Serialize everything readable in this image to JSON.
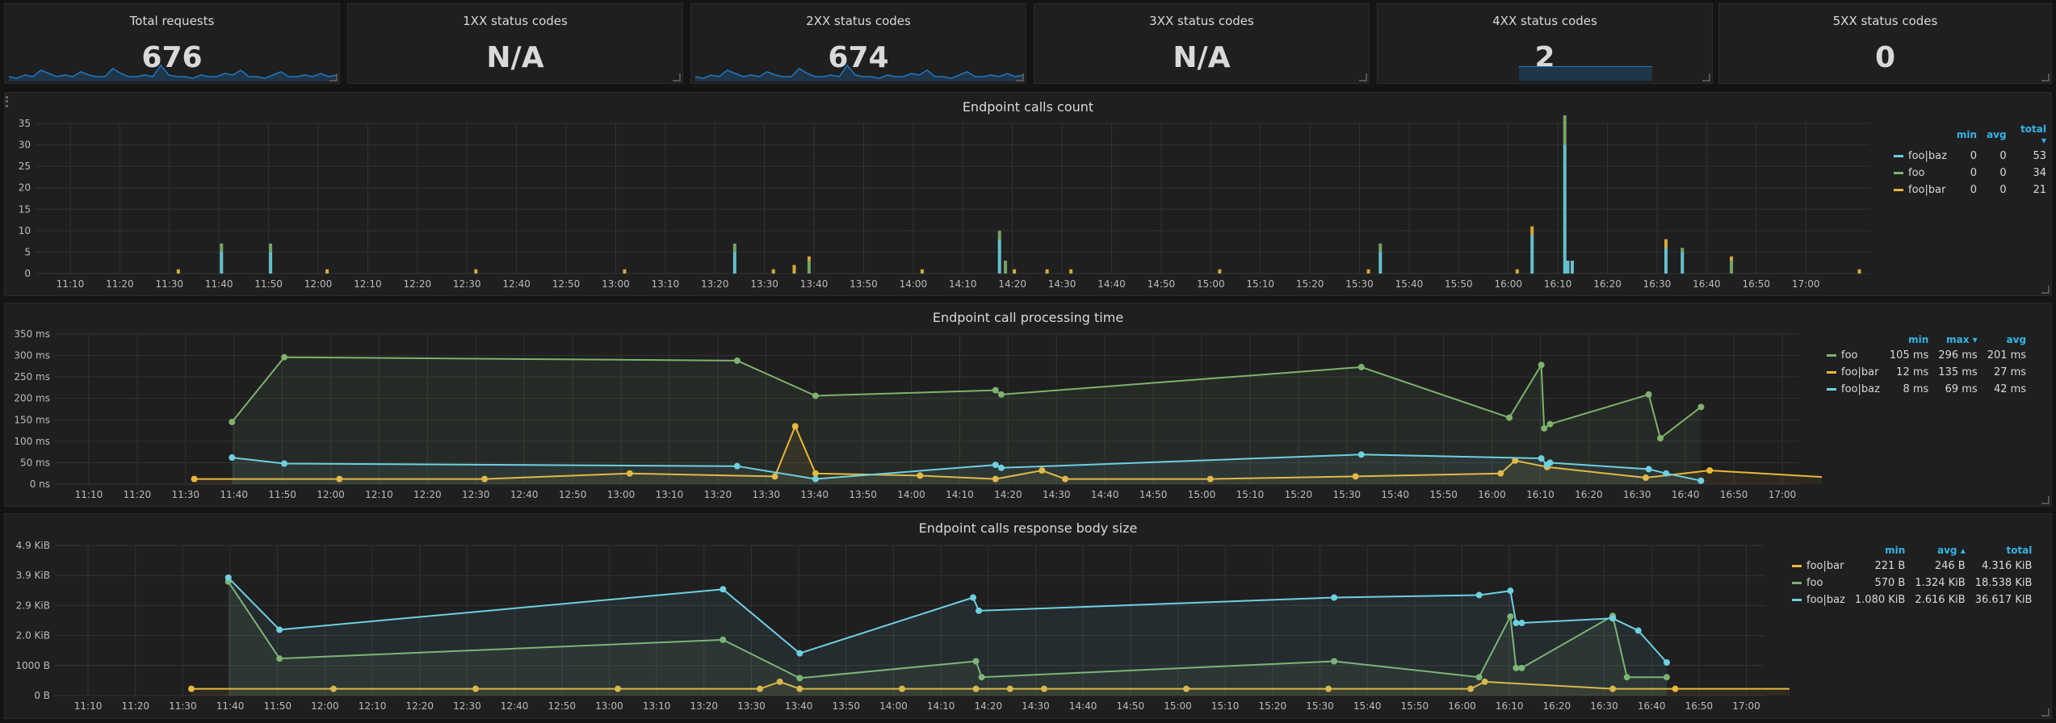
{
  "stats": [
    {
      "title": "Total requests",
      "value": "676",
      "spark": [
        2,
        1,
        3,
        2,
        6,
        4,
        2,
        3,
        2,
        5,
        3,
        2,
        2,
        7,
        4,
        2,
        2,
        3,
        2,
        9,
        3,
        2,
        2,
        1,
        3,
        2,
        2,
        4,
        3,
        6,
        2,
        2,
        1,
        3,
        5,
        2,
        2,
        3,
        2,
        4,
        2,
        3
      ]
    },
    {
      "title": "1XX status codes",
      "value": "N/A"
    },
    {
      "title": "2XX status codes",
      "value": "674",
      "spark": [
        2,
        1,
        3,
        2,
        6,
        4,
        2,
        3,
        2,
        5,
        3,
        2,
        2,
        7,
        4,
        2,
        2,
        3,
        2,
        9,
        3,
        2,
        2,
        1,
        3,
        2,
        2,
        4,
        3,
        6,
        2,
        2,
        1,
        3,
        5,
        2,
        2,
        3,
        2,
        4,
        2,
        3
      ]
    },
    {
      "title": "3XX status codes",
      "value": "N/A"
    },
    {
      "title": "4XX status codes",
      "value": "2",
      "bar": true
    },
    {
      "title": "5XX status codes",
      "value": "0"
    }
  ],
  "graph1": {
    "title": "Endpoint calls count",
    "yticks": [
      "0",
      "5",
      "10",
      "15",
      "20",
      "25",
      "30",
      "35"
    ],
    "xticks": [
      "11:10",
      "11:20",
      "11:30",
      "11:40",
      "11:50",
      "12:00",
      "12:10",
      "12:20",
      "12:30",
      "12:40",
      "12:50",
      "13:00",
      "13:10",
      "13:20",
      "13:30",
      "13:40",
      "13:50",
      "14:00",
      "14:10",
      "14:20",
      "14:30",
      "14:40",
      "14:50",
      "15:00",
      "15:10",
      "15:20",
      "15:30",
      "15:40",
      "15:50",
      "16:00",
      "16:10",
      "16:20",
      "16:30",
      "16:40",
      "16:50",
      "17:00"
    ],
    "legend_headers": [
      "min",
      "avg",
      "total ▾"
    ],
    "series": [
      {
        "name": "foo|baz",
        "color": "#6ed0e0",
        "min": "0",
        "avg": "0",
        "total": "53"
      },
      {
        "name": "foo",
        "color": "#7eb26d",
        "min": "0",
        "avg": "0",
        "total": "34"
      },
      {
        "name": "foo|bar",
        "color": "#eab839",
        "min": "0",
        "avg": "0",
        "total": "21"
      }
    ],
    "bars": [
      {
        "t": 11.53,
        "v": 1,
        "c": 2
      },
      {
        "t": 11.675,
        "v": 5,
        "c": 0
      },
      {
        "t": 11.675,
        "v": 2,
        "c": 1
      },
      {
        "t": 11.84,
        "v": 5,
        "c": 0
      },
      {
        "t": 11.84,
        "v": 2,
        "c": 1
      },
      {
        "t": 12.03,
        "v": 1,
        "c": 2
      },
      {
        "t": 12.53,
        "v": 1,
        "c": 2
      },
      {
        "t": 13.03,
        "v": 1,
        "c": 2
      },
      {
        "t": 13.4,
        "v": 5,
        "c": 0
      },
      {
        "t": 13.4,
        "v": 2,
        "c": 1
      },
      {
        "t": 13.53,
        "v": 1,
        "c": 2
      },
      {
        "t": 13.6,
        "v": 2,
        "c": 2
      },
      {
        "t": 13.65,
        "v": 3,
        "c": 1
      },
      {
        "t": 13.65,
        "v": 1,
        "c": 2
      },
      {
        "t": 14.03,
        "v": 1,
        "c": 2
      },
      {
        "t": 14.29,
        "v": 8,
        "c": 0
      },
      {
        "t": 14.29,
        "v": 2,
        "c": 1
      },
      {
        "t": 14.31,
        "v": 3,
        "c": 1
      },
      {
        "t": 14.34,
        "v": 1,
        "c": 2
      },
      {
        "t": 14.45,
        "v": 1,
        "c": 2
      },
      {
        "t": 14.53,
        "v": 1,
        "c": 2
      },
      {
        "t": 15.03,
        "v": 1,
        "c": 2
      },
      {
        "t": 15.53,
        "v": 1,
        "c": 2
      },
      {
        "t": 15.57,
        "v": 5,
        "c": 0
      },
      {
        "t": 15.57,
        "v": 2,
        "c": 1
      },
      {
        "t": 16.03,
        "v": 1,
        "c": 2
      },
      {
        "t": 16.08,
        "v": 9,
        "c": 0
      },
      {
        "t": 16.08,
        "v": 2,
        "c": 2
      },
      {
        "t": 16.19,
        "v": 30,
        "c": 0
      },
      {
        "t": 16.19,
        "v": 12,
        "c": 1
      },
      {
        "t": 16.2,
        "v": 3,
        "c": 0
      },
      {
        "t": 16.215,
        "v": 3,
        "c": 0
      },
      {
        "t": 16.53,
        "v": 6,
        "c": 0
      },
      {
        "t": 16.53,
        "v": 2,
        "c": 2
      },
      {
        "t": 16.585,
        "v": 5,
        "c": 0
      },
      {
        "t": 16.585,
        "v": 1,
        "c": 1
      },
      {
        "t": 16.75,
        "v": 3,
        "c": 1
      },
      {
        "t": 16.75,
        "v": 1,
        "c": 2
      },
      {
        "t": 17.18,
        "v": 1,
        "c": 2
      }
    ]
  },
  "graph2": {
    "title": "Endpoint call processing time",
    "yticks": [
      "0 ns",
      "50 ms",
      "100 ms",
      "150 ms",
      "200 ms",
      "250 ms",
      "300 ms",
      "350 ms"
    ],
    "xticks": [
      "11:10",
      "11:20",
      "11:30",
      "11:40",
      "11:50",
      "12:00",
      "12:10",
      "12:20",
      "12:30",
      "12:40",
      "12:50",
      "13:00",
      "13:10",
      "13:20",
      "13:30",
      "13:40",
      "13:50",
      "14:00",
      "14:10",
      "14:20",
      "14:30",
      "14:40",
      "14:50",
      "15:00",
      "15:10",
      "15:20",
      "15:30",
      "15:40",
      "15:50",
      "16:00",
      "16:10",
      "16:20",
      "16:30",
      "16:40",
      "16:50",
      "17:00"
    ],
    "legend_headers": [
      "min",
      "max ▾",
      "avg"
    ],
    "series": [
      {
        "name": "foo",
        "color": "#7eb26d",
        "min": "105 ms",
        "max": "296 ms",
        "avg": "201 ms",
        "pts": [
          [
            11.66,
            145
          ],
          [
            11.84,
            296
          ],
          [
            13.4,
            288
          ],
          [
            13.67,
            206
          ],
          [
            14.29,
            219
          ],
          [
            14.31,
            209
          ],
          [
            15.55,
            273
          ],
          [
            16.06,
            155
          ],
          [
            16.17,
            278
          ],
          [
            16.18,
            130
          ],
          [
            16.2,
            140
          ],
          [
            16.54,
            209
          ],
          [
            16.58,
            107
          ],
          [
            16.72,
            180
          ]
        ]
      },
      {
        "name": "foo|bar",
        "color": "#eab839",
        "min": "12 ms",
        "max": "135 ms",
        "avg": "27 ms",
        "pts": [
          [
            11.53,
            12
          ],
          [
            12.03,
            12
          ],
          [
            12.53,
            12
          ],
          [
            13.03,
            25
          ],
          [
            13.53,
            18
          ],
          [
            13.6,
            135
          ],
          [
            13.67,
            25
          ],
          [
            14.03,
            20
          ],
          [
            14.29,
            12
          ],
          [
            14.45,
            32
          ],
          [
            14.53,
            12
          ],
          [
            15.03,
            12
          ],
          [
            15.53,
            18
          ],
          [
            16.03,
            25
          ],
          [
            16.08,
            55
          ],
          [
            16.19,
            40
          ],
          [
            16.53,
            15
          ],
          [
            16.75,
            32
          ],
          [
            17.18,
            15
          ]
        ]
      },
      {
        "name": "foo|baz",
        "color": "#6ed0e0",
        "min": "8 ms",
        "max": "69 ms",
        "avg": "42 ms",
        "pts": [
          [
            11.66,
            62
          ],
          [
            11.84,
            48
          ],
          [
            13.4,
            42
          ],
          [
            13.67,
            12
          ],
          [
            14.29,
            45
          ],
          [
            14.31,
            38
          ],
          [
            15.55,
            69
          ],
          [
            16.17,
            60
          ],
          [
            16.19,
            45
          ],
          [
            16.2,
            50
          ],
          [
            16.54,
            35
          ],
          [
            16.6,
            25
          ],
          [
            16.72,
            8
          ]
        ]
      }
    ]
  },
  "graph3": {
    "title": "Endpoint calls response body size",
    "yticks": [
      "0 B",
      "1000 B",
      "2.0 KiB",
      "2.9 KiB",
      "3.9 KiB",
      "4.9 KiB"
    ],
    "xticks": [
      "11:10",
      "11:20",
      "11:30",
      "11:40",
      "11:50",
      "12:00",
      "12:10",
      "12:20",
      "12:30",
      "12:40",
      "12:50",
      "13:00",
      "13:10",
      "13:20",
      "13:30",
      "13:40",
      "13:50",
      "14:00",
      "14:10",
      "14:20",
      "14:30",
      "14:40",
      "14:50",
      "15:00",
      "15:10",
      "15:20",
      "15:30",
      "15:40",
      "15:50",
      "16:00",
      "16:10",
      "16:20",
      "16:30",
      "16:40",
      "16:50",
      "17:00"
    ],
    "legend_headers": [
      "min",
      "avg ▴",
      "total"
    ],
    "series": [
      {
        "name": "foo|bar",
        "color": "#eab839",
        "min": "221 B",
        "avg": "246 B",
        "total": "4.316 KiB",
        "pts": [
          [
            11.53,
            0.22
          ],
          [
            12.03,
            0.22
          ],
          [
            12.53,
            0.22
          ],
          [
            13.03,
            0.22
          ],
          [
            13.53,
            0.22
          ],
          [
            13.6,
            0.45
          ],
          [
            13.67,
            0.22
          ],
          [
            14.03,
            0.22
          ],
          [
            14.29,
            0.22
          ],
          [
            14.41,
            0.22
          ],
          [
            14.53,
            0.22
          ],
          [
            15.03,
            0.22
          ],
          [
            15.53,
            0.22
          ],
          [
            16.03,
            0.22
          ],
          [
            16.08,
            0.45
          ],
          [
            16.53,
            0.22
          ],
          [
            16.75,
            0.22
          ],
          [
            17.18,
            0.22
          ]
        ]
      },
      {
        "name": "foo",
        "color": "#7eb26d",
        "min": "570 B",
        "avg": "1.324 KiB",
        "total": "18.538 KiB",
        "pts": [
          [
            11.66,
            3.72
          ],
          [
            11.84,
            1.21
          ],
          [
            13.4,
            1.82
          ],
          [
            13.67,
            0.57
          ],
          [
            14.29,
            1.12
          ],
          [
            14.31,
            0.6
          ],
          [
            15.55,
            1.12
          ],
          [
            16.06,
            0.6
          ],
          [
            16.17,
            2.58
          ],
          [
            16.19,
            0.9
          ],
          [
            16.21,
            0.9
          ],
          [
            16.53,
            2.6
          ],
          [
            16.58,
            0.6
          ],
          [
            16.72,
            0.6
          ]
        ]
      },
      {
        "name": "foo|baz",
        "color": "#6ed0e0",
        "min": "1.080 KiB",
        "avg": "2.616 KiB",
        "total": "36.617 KiB",
        "pts": [
          [
            11.66,
            3.85
          ],
          [
            11.84,
            2.15
          ],
          [
            13.4,
            3.47
          ],
          [
            13.67,
            1.38
          ],
          [
            14.28,
            3.2
          ],
          [
            14.3,
            2.77
          ],
          [
            15.55,
            3.2
          ],
          [
            16.06,
            3.28
          ],
          [
            16.17,
            3.42
          ],
          [
            16.19,
            2.37
          ],
          [
            16.21,
            2.37
          ],
          [
            16.53,
            2.52
          ],
          [
            16.62,
            2.12
          ],
          [
            16.72,
            1.08
          ]
        ]
      }
    ]
  }
}
